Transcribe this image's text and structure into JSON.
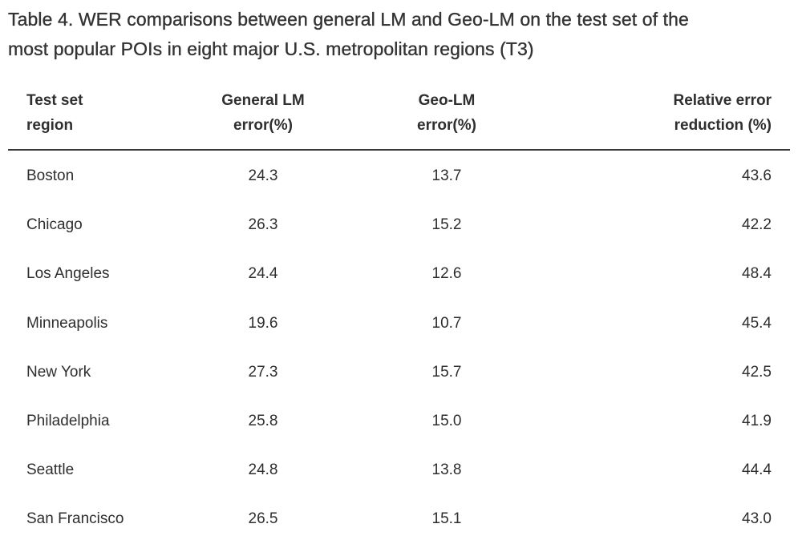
{
  "caption": {
    "line1": "Table 4. WER comparisons between general LM and Geo-LM on the test set of the",
    "line2": "most popular POIs in eight major U.S. metropolitan regions (T3)"
  },
  "headers": [
    {
      "line1": "Test set",
      "line2": "region"
    },
    {
      "line1": "General LM",
      "line2": "error(%)"
    },
    {
      "line1": "Geo-LM",
      "line2": "error(%)"
    },
    {
      "line1": "Relative error",
      "line2": "reduction (%)"
    }
  ],
  "rows": [
    [
      "Boston",
      "24.3",
      "13.7",
      "43.6"
    ],
    [
      "Chicago",
      "26.3",
      "15.2",
      "42.2"
    ],
    [
      "Los Angeles",
      "24.4",
      "12.6",
      "48.4"
    ],
    [
      "Minneapolis",
      "19.6",
      "10.7",
      "45.4"
    ],
    [
      "New York",
      "27.3",
      "15.7",
      "42.5"
    ],
    [
      "Philadelphia",
      "25.8",
      "15.0",
      "41.9"
    ],
    [
      "Seattle",
      "24.8",
      "13.8",
      "44.4"
    ],
    [
      "San Francisco",
      "26.5",
      "15.1",
      "43.0"
    ]
  ]
}
